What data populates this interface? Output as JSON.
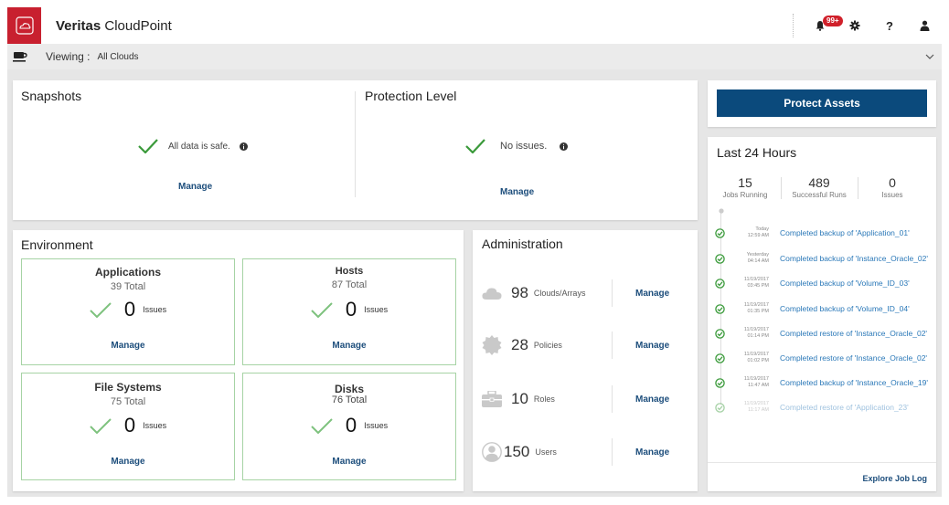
{
  "header": {
    "brand": "Veritas",
    "product": "CloudPoint",
    "notification_badge": "99+",
    "icons": [
      "bell-icon",
      "gear-icon",
      "help-icon",
      "user-icon"
    ]
  },
  "viewing": {
    "label": "Viewing :",
    "value": "All Clouds"
  },
  "snapshots": {
    "title": "Snapshots",
    "status": "All data is safe.",
    "manage": "Manage"
  },
  "protection": {
    "title": "Protection Level",
    "status": "No issues.",
    "manage": "Manage"
  },
  "environment": {
    "title": "Environment",
    "items": [
      {
        "title": "Applications",
        "total": "39 Total",
        "count": "0",
        "issues": "Issues",
        "manage": "Manage"
      },
      {
        "title": "Hosts",
        "total": "87 Total",
        "count": "0",
        "issues": "Issues",
        "manage": "Manage"
      },
      {
        "title": "File Systems",
        "total": "75 Total",
        "count": "0",
        "issues": "Issues",
        "manage": "Manage"
      },
      {
        "title": "Disks",
        "total": "76 Total",
        "count": "0",
        "issues": "Issues",
        "manage": "Manage"
      }
    ]
  },
  "administration": {
    "title": "Administration",
    "items": [
      {
        "count": "98",
        "label": "Clouds/Arrays",
        "manage": "Manage",
        "icon": "cloud-icon"
      },
      {
        "count": "28",
        "label": "Policies",
        "manage": "Manage",
        "icon": "badge-icon"
      },
      {
        "count": "10",
        "label": "Roles",
        "manage": "Manage",
        "icon": "briefcase-icon"
      },
      {
        "count": "150",
        "label": "Users",
        "manage": "Manage",
        "icon": "user-circle-icon"
      }
    ]
  },
  "protect_button": "Protect Assets",
  "last24": {
    "title": "Last 24 Hours",
    "stats": [
      {
        "value": "15",
        "label": "Jobs Running"
      },
      {
        "value": "489",
        "label": "Successful Runs"
      },
      {
        "value": "0",
        "label": "Issues"
      }
    ],
    "log": [
      {
        "date": "Today",
        "time": "12:59 AM",
        "text": "Completed backup of 'Application_01'"
      },
      {
        "date": "Yesterday",
        "time": "04:14 AM",
        "text": "Completed backup of 'Instance_Oracle_02'"
      },
      {
        "date": "11/19/2017",
        "time": "03:45 PM",
        "text": "Completed backup of 'Volume_ID_03'"
      },
      {
        "date": "11/19/2017",
        "time": "01:35 PM",
        "text": "Completed backup of 'Volume_ID_04'"
      },
      {
        "date": "11/19/2017",
        "time": "01:14 PM",
        "text": "Completed restore of 'Instance_Oracle_02'"
      },
      {
        "date": "11/19/2017",
        "time": "01:02 PM",
        "text": "Completed restore of 'Instance_Oracle_02'"
      },
      {
        "date": "11/19/2017",
        "time": "11:47 AM",
        "text": "Completed backup of 'Instance_Oracle_19'"
      },
      {
        "date": "11/19/2017",
        "time": "11:17 AM",
        "text": "Completed restore of 'Application_23'"
      }
    ],
    "explore": "Explore Job Log"
  },
  "colors": {
    "brand_red": "#c8202f",
    "primary_blue": "#0b4a7c",
    "success_green": "#3a9a3a",
    "link_blue": "#2a78b8"
  }
}
